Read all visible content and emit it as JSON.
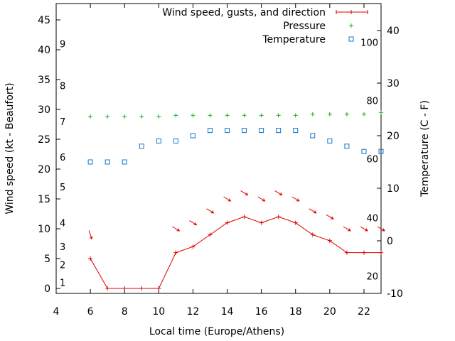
{
  "chart_data": {
    "type": "line",
    "title": "",
    "xlabel": "Local time (Europe/Athens)",
    "ylabel_left": "Wind speed (kt - Beaufort)",
    "ylabel_right": "Temperature (C - F)",
    "xlim": [
      4,
      23
    ],
    "ylim_left": [
      0,
      48
    ],
    "ylim_right": [
      -10,
      45
    ],
    "x_ticks": [
      "4",
      "6",
      "8",
      "10",
      "12",
      "14",
      "16",
      "18",
      "20",
      "22"
    ],
    "y_ticks_left": [
      "0",
      "5",
      "10",
      "15",
      "20",
      "25",
      "30",
      "35",
      "40",
      "45"
    ],
    "y_ticks_right": [
      "-10",
      "0",
      "10",
      "20",
      "30",
      "40"
    ],
    "beaufort_labels": [
      {
        "label": "1",
        "kt": 1
      },
      {
        "label": "2",
        "kt": 4
      },
      {
        "label": "3",
        "kt": 7
      },
      {
        "label": "4",
        "kt": 11
      },
      {
        "label": "5",
        "kt": 17
      },
      {
        "label": "6",
        "kt": 22
      },
      {
        "label": "7",
        "kt": 28
      },
      {
        "label": "8",
        "kt": 34
      },
      {
        "label": "9",
        "kt": 41
      }
    ],
    "fahrenheit_labels": [
      {
        "label": "20",
        "c": -6.7
      },
      {
        "label": "40",
        "c": 4.4
      },
      {
        "label": "60",
        "c": 15.6
      },
      {
        "label": "80",
        "c": 26.7
      },
      {
        "label": "100",
        "c": 37.8
      }
    ],
    "grid": false,
    "legend_position": "top-right",
    "legend": [
      "Wind speed, gusts, and direction",
      "Pressure",
      "Temperature"
    ],
    "colors": {
      "wind": "#dd0000",
      "pressure": "#22aa22",
      "temperature": "#1177cc"
    },
    "series": [
      {
        "name": "Wind speed, gusts, and direction",
        "axis": "left",
        "x": [
          6,
          7,
          8,
          9,
          10,
          11,
          12,
          13,
          14,
          15,
          16,
          17,
          18,
          19,
          20,
          21,
          22,
          23
        ],
        "values": [
          5,
          0,
          0,
          0,
          0,
          6,
          7,
          9,
          11,
          12,
          11,
          12,
          11,
          9,
          8,
          6,
          6,
          6
        ]
      },
      {
        "name": "Pressure",
        "axis": "left",
        "x": [
          6,
          7,
          8,
          9,
          10,
          11,
          12,
          13,
          14,
          15,
          16,
          17,
          18,
          19,
          20,
          21,
          22,
          23
        ],
        "values": [
          28.8,
          28.8,
          28.8,
          28.8,
          28.8,
          29.0,
          29.0,
          29.0,
          29.0,
          29.0,
          29.0,
          29.0,
          29.0,
          29.2,
          29.2,
          29.2,
          29.2,
          29.5
        ]
      },
      {
        "name": "Temperature",
        "axis": "right",
        "x": [
          6,
          7,
          8,
          9,
          10,
          11,
          12,
          13,
          14,
          15,
          16,
          17,
          18,
          19,
          20,
          21,
          22,
          23
        ],
        "values": [
          15,
          15,
          15,
          18,
          19,
          19,
          20,
          21,
          21,
          21,
          21,
          21,
          21,
          20,
          19,
          18,
          17,
          17
        ]
      }
    ],
    "wind_direction_arrows": {
      "x": [
        6,
        11,
        12,
        13,
        14,
        15,
        16,
        17,
        18,
        19,
        20,
        21,
        22,
        23
      ],
      "kt": [
        9,
        10,
        11,
        13,
        15,
        16,
        15,
        16,
        15,
        13,
        12,
        10,
        10,
        10
      ]
    }
  }
}
